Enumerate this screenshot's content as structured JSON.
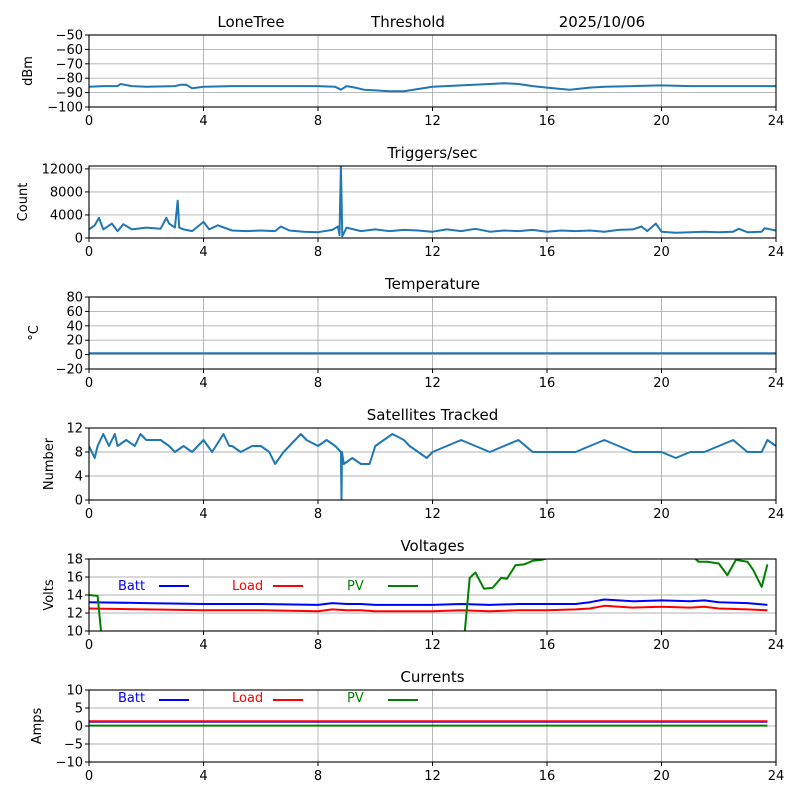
{
  "header": {
    "station": "LoneTree",
    "mode": "Threshold",
    "date": "2025/10/06"
  },
  "colors": {
    "default_series": "#1f77b4",
    "batt": "#0000ff",
    "load": "#ff0000",
    "pv": "#008000"
  },
  "chart_data": [
    {
      "id": "signal",
      "type": "line",
      "title": "",
      "xlabel": "",
      "ylabel": "dBm",
      "xlim": [
        0,
        24
      ],
      "ylim": [
        -100,
        -50
      ],
      "xticks": [
        0,
        4,
        8,
        12,
        16,
        20,
        24
      ],
      "yticks": [
        -50,
        -60,
        -70,
        -80,
        -90,
        -100
      ],
      "ytick_labels": [
        "−50",
        "−60",
        "−70",
        "−80",
        "−90",
        "−100"
      ],
      "grid": true,
      "series": [
        {
          "name": "signal",
          "color": "#1f77b4",
          "x": [
            0,
            0.5,
            1.0,
            1.1,
            1.5,
            2.0,
            3.0,
            3.2,
            3.4,
            3.6,
            4.0,
            5.0,
            6.0,
            7.0,
            8.0,
            8.6,
            8.8,
            9.0,
            9.3,
            9.6,
            10.0,
            10.5,
            11.0,
            11.5,
            12.0,
            13.0,
            14.0,
            14.5,
            15.0,
            15.5,
            16.0,
            16.5,
            16.8,
            17.5,
            18.0,
            19.0,
            20.0,
            21.0,
            22.0,
            23.0,
            24.0
          ],
          "y": [
            -86,
            -85.5,
            -85.5,
            -84,
            -85.5,
            -86,
            -85.5,
            -84.5,
            -84.5,
            -87,
            -86,
            -85.5,
            -85.5,
            -85.5,
            -85.5,
            -86,
            -88,
            -85.5,
            -86.5,
            -88,
            -88.5,
            -89,
            -89,
            -87.5,
            -86,
            -85,
            -84,
            -83.5,
            -84,
            -85.5,
            -86.5,
            -87.5,
            -88,
            -86.5,
            -86,
            -85.5,
            -85,
            -85.5,
            -85.5,
            -85.5,
            -85.5
          ]
        }
      ]
    },
    {
      "id": "triggers",
      "type": "line",
      "title": "Triggers/sec",
      "xlabel": "",
      "ylabel": "Count",
      "xlim": [
        0,
        24
      ],
      "ylim": [
        0,
        12500
      ],
      "xticks": [
        0,
        4,
        8,
        12,
        16,
        20,
        24
      ],
      "yticks": [
        12000,
        8000,
        4000,
        0
      ],
      "ytick_labels": [
        "12000",
        "8000",
        "4000",
        "0"
      ],
      "grid": true,
      "series": [
        {
          "name": "triggers",
          "color": "#1f77b4",
          "x": [
            0,
            0.2,
            0.35,
            0.5,
            0.8,
            1.0,
            1.2,
            1.5,
            2.0,
            2.5,
            2.7,
            2.8,
            3.0,
            3.1,
            3.15,
            3.3,
            3.6,
            4.0,
            4.2,
            4.5,
            5.0,
            5.5,
            6.0,
            6.5,
            6.7,
            7.0,
            7.5,
            8.0,
            8.5,
            8.7,
            8.75,
            8.8,
            8.85,
            9.0,
            9.5,
            10.0,
            10.5,
            11.0,
            11.5,
            12.0,
            12.5,
            13.0,
            13.5,
            14.0,
            14.5,
            15.0,
            15.5,
            16.0,
            16.5,
            17.0,
            17.5,
            18.0,
            18.5,
            19.0,
            19.3,
            19.5,
            19.8,
            20.0,
            20.5,
            21.0,
            21.5,
            22.0,
            22.5,
            22.7,
            23.0,
            23.5,
            23.6,
            24.0
          ],
          "y": [
            1500,
            2200,
            3500,
            1500,
            2500,
            1200,
            2400,
            1500,
            1800,
            1600,
            3500,
            2500,
            1800,
            6500,
            1800,
            1500,
            1200,
            2800,
            1500,
            2200,
            1300,
            1200,
            1300,
            1200,
            2000,
            1300,
            1100,
            1000,
            1400,
            2000,
            500,
            12400,
            300,
            1800,
            1200,
            1500,
            1200,
            1400,
            1300,
            1100,
            1500,
            1200,
            1600,
            1100,
            1300,
            1200,
            1400,
            1100,
            1300,
            1200,
            1300,
            1100,
            1400,
            1500,
            2000,
            1200,
            2500,
            1100,
            900,
            1000,
            1100,
            1000,
            1100,
            1600,
            1000,
            1100,
            1700,
            1300
          ]
        }
      ]
    },
    {
      "id": "temperature",
      "type": "line",
      "title": "Temperature",
      "xlabel": "",
      "ylabel": "°C",
      "xlim": [
        0,
        24
      ],
      "ylim": [
        -20,
        80
      ],
      "xticks": [
        0,
        4,
        8,
        12,
        16,
        20,
        24
      ],
      "yticks": [
        80,
        60,
        40,
        20,
        0,
        -20
      ],
      "ytick_labels": [
        "80",
        "60",
        "40",
        "20",
        "0",
        "−20"
      ],
      "grid": true,
      "series": [
        {
          "name": "temperature",
          "color": "#1f77b4",
          "x": [
            0,
            24
          ],
          "y": [
            2,
            2
          ]
        }
      ]
    },
    {
      "id": "satellites",
      "type": "line",
      "title": "Satellites Tracked",
      "xlabel": "",
      "ylabel": "Number",
      "xlim": [
        0,
        24
      ],
      "ylim": [
        0,
        12
      ],
      "xticks": [
        0,
        4,
        8,
        12,
        16,
        20,
        24
      ],
      "yticks": [
        12,
        8,
        4,
        0
      ],
      "ytick_labels": [
        "12",
        "8",
        "4",
        "0"
      ],
      "grid": true,
      "series": [
        {
          "name": "satellites",
          "color": "#1f77b4",
          "x": [
            0,
            0.2,
            0.3,
            0.5,
            0.7,
            0.9,
            1.0,
            1.3,
            1.6,
            1.8,
            2.0,
            2.5,
            2.8,
            3.0,
            3.3,
            3.6,
            4.0,
            4.3,
            4.7,
            4.9,
            5.0,
            5.3,
            5.7,
            6.0,
            6.3,
            6.5,
            6.8,
            7.0,
            7.4,
            7.6,
            8.0,
            8.3,
            8.6,
            8.8,
            8.82,
            8.84,
            8.9,
            9.2,
            9.5,
            9.8,
            10.0,
            10.3,
            10.6,
            11.0,
            11.2,
            11.5,
            11.8,
            12.0,
            12.5,
            13.0,
            13.5,
            14.0,
            14.5,
            15.0,
            15.5,
            16.0,
            16.5,
            17.0,
            17.5,
            18.0,
            18.5,
            19.0,
            19.5,
            20.0,
            20.5,
            21.0,
            21.5,
            22.0,
            22.5,
            23.0,
            23.5,
            23.7,
            24.0
          ],
          "y": [
            9,
            7,
            9,
            11,
            9,
            11,
            9,
            10,
            9,
            11,
            10,
            10,
            9,
            8,
            9,
            8,
            10,
            8,
            11,
            9,
            9,
            8,
            9,
            9,
            8,
            6,
            8,
            9,
            11,
            10,
            9,
            10,
            9,
            8,
            0,
            8,
            6,
            7,
            6,
            6,
            9,
            10,
            11,
            10,
            9,
            8,
            7,
            8,
            9,
            10,
            9,
            8,
            9,
            10,
            8,
            8,
            8,
            8,
            9,
            10,
            9,
            8,
            8,
            8,
            7,
            8,
            8,
            9,
            10,
            8,
            8,
            10,
            9
          ]
        }
      ]
    },
    {
      "id": "voltages",
      "type": "line",
      "title": "Voltages",
      "xlabel": "",
      "ylabel": "Volts",
      "xlim": [
        0,
        24
      ],
      "ylim": [
        10,
        18
      ],
      "xticks": [
        0,
        4,
        8,
        12,
        16,
        20,
        24
      ],
      "yticks": [
        18,
        16,
        14,
        12,
        10
      ],
      "ytick_labels": [
        "18",
        "16",
        "14",
        "12",
        "10"
      ],
      "grid": true,
      "legend": {
        "placement": "top-inside",
        "entries": [
          "Batt",
          "Load",
          "PV"
        ]
      },
      "series": [
        {
          "name": "Batt",
          "color": "#0000ff",
          "x": [
            0,
            2,
            4,
            6,
            8,
            8.5,
            9,
            9.5,
            10,
            11,
            12,
            13,
            14,
            15,
            16,
            17,
            17.5,
            18,
            19,
            20,
            21,
            21.5,
            22,
            23,
            23.7
          ],
          "y": [
            13.2,
            13.1,
            13.0,
            13.0,
            12.9,
            13.1,
            13.0,
            13.0,
            12.9,
            12.9,
            12.9,
            13.0,
            12.9,
            13.0,
            13.0,
            13.0,
            13.2,
            13.5,
            13.3,
            13.4,
            13.3,
            13.4,
            13.2,
            13.1,
            12.9
          ]
        },
        {
          "name": "Load",
          "color": "#ff0000",
          "x": [
            0,
            2,
            4,
            6,
            8,
            8.5,
            9,
            9.5,
            10,
            11,
            12,
            13,
            14,
            15,
            16,
            17,
            17.5,
            18,
            19,
            20,
            21,
            21.5,
            22,
            23,
            23.7
          ],
          "y": [
            12.5,
            12.4,
            12.3,
            12.3,
            12.2,
            12.4,
            12.3,
            12.3,
            12.2,
            12.2,
            12.2,
            12.3,
            12.2,
            12.3,
            12.3,
            12.4,
            12.5,
            12.8,
            12.6,
            12.7,
            12.6,
            12.7,
            12.5,
            12.4,
            12.3
          ]
        },
        {
          "name": "PV",
          "color": "#008000",
          "x": [
            0,
            0.3,
            0.45,
            13.1,
            13.3,
            13.5,
            13.8,
            14.1,
            14.4,
            14.6,
            14.9,
            15.2,
            15.5,
            15.8,
            16.5,
            17.5,
            18.5,
            19.5,
            20.5,
            21.0,
            21.3,
            21.6,
            22.0,
            22.3,
            22.6,
            23.0,
            23.2,
            23.5,
            23.7
          ],
          "y": [
            14.0,
            13.9,
            9.0,
            9.0,
            15.9,
            16.5,
            14.7,
            14.8,
            15.9,
            15.8,
            17.3,
            17.4,
            17.8,
            17.9,
            18.5,
            18.5,
            18.5,
            18.5,
            18.5,
            18.5,
            17.7,
            17.7,
            17.5,
            16.2,
            17.9,
            17.7,
            16.8,
            14.9,
            17.4
          ]
        }
      ]
    },
    {
      "id": "currents",
      "type": "line",
      "title": "Currents",
      "xlabel": "",
      "ylabel": "Amps",
      "xlim": [
        0,
        24
      ],
      "ylim": [
        -10,
        10
      ],
      "xticks": [
        0,
        4,
        8,
        12,
        16,
        20,
        24
      ],
      "yticks": [
        10,
        5,
        0,
        -5,
        -10
      ],
      "ytick_labels": [
        "10",
        "5",
        "0",
        "−5",
        "−10"
      ],
      "grid": true,
      "legend": {
        "placement": "top-inside",
        "entries": [
          "Batt",
          "Load",
          "PV"
        ]
      },
      "series": [
        {
          "name": "Batt",
          "color": "#0000ff",
          "x": [
            0,
            23.7
          ],
          "y": [
            1.2,
            1.2
          ]
        },
        {
          "name": "Load",
          "color": "#ff0000",
          "x": [
            0,
            23.7
          ],
          "y": [
            1.3,
            1.3
          ]
        },
        {
          "name": "PV",
          "color": "#008000",
          "x": [
            0,
            23.7
          ],
          "y": [
            0.1,
            0.1
          ]
        }
      ]
    }
  ]
}
